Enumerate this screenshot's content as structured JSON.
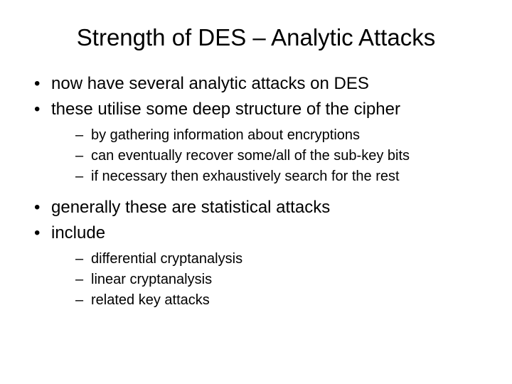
{
  "slide": {
    "title": "Strength of DES – Analytic Attacks",
    "title_fontsize": 33,
    "title_color": "#000000",
    "background_color": "#ffffff",
    "bullets": [
      {
        "text": "now have several analytic attacks on DES"
      },
      {
        "text": "these utilise some deep structure of the cipher",
        "sub": [
          "by gathering information about encryptions",
          "can eventually recover some/all of the sub-key bits",
          "if necessary then exhaustively search for the rest"
        ]
      },
      {
        "text": "generally these are statistical attacks"
      },
      {
        "text": "include",
        "sub": [
          "differential cryptanalysis",
          "linear cryptanalysis",
          "related key attacks"
        ]
      }
    ],
    "level1_fontsize": 24,
    "level2_fontsize": 20,
    "font_family": "Arial",
    "text_color": "#000000"
  }
}
